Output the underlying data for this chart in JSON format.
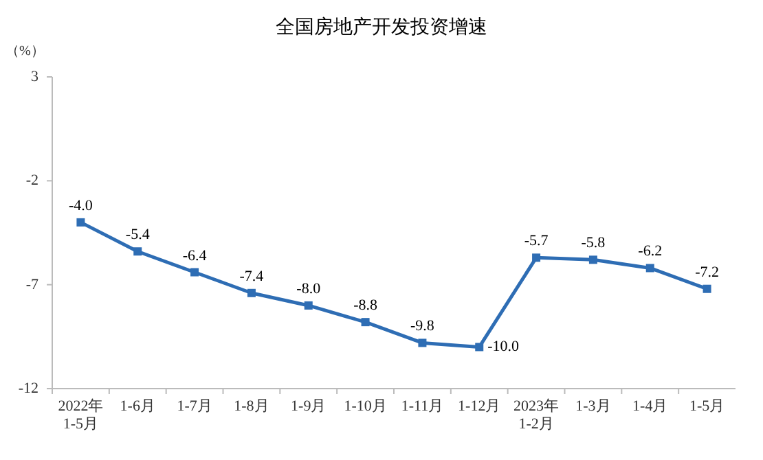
{
  "chart_data": {
    "type": "line",
    "title": "全国房地产开发投资增速",
    "ylabel": "（%）",
    "categories": [
      "2022年\n1-5月",
      "1-6月",
      "1-7月",
      "1-8月",
      "1-9月",
      "1-10月",
      "1-11月",
      "1-12月",
      "2023年\n1-2月",
      "1-3月",
      "1-4月",
      "1-5月"
    ],
    "series": [
      {
        "color": "#2e6db4",
        "values": [
          -4.0,
          -5.4,
          -6.4,
          -7.4,
          -8.0,
          -8.8,
          -9.8,
          -10.0,
          -5.7,
          -5.8,
          -6.2,
          -7.2
        ],
        "value_labels": [
          "-4.0",
          "-5.4",
          "-6.4",
          "-7.4",
          "-8.0",
          "-8.8",
          "-9.8",
          "-10.0",
          "-5.7",
          "-5.8",
          "-6.2",
          "-7.2"
        ]
      }
    ],
    "ylim": [
      -12,
      3
    ],
    "yticks": [
      -12,
      -7,
      -2,
      3
    ],
    "marker": "square",
    "line_style": "solid",
    "grid": false
  }
}
